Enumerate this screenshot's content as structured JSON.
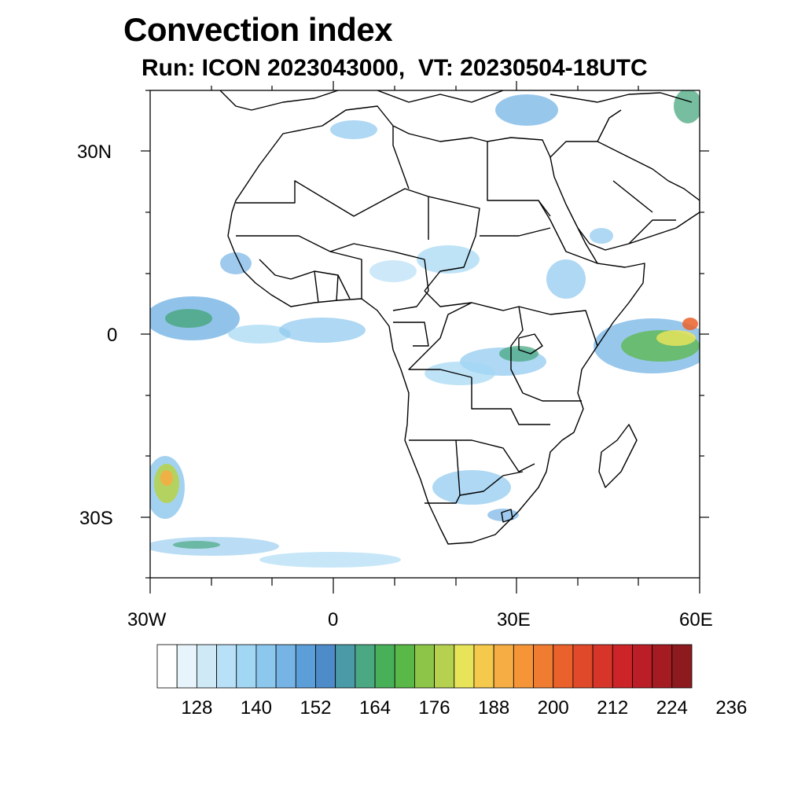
{
  "title": "Convection index",
  "subtitle": "Run: ICON 2023043000,  VT: 20230504-18UTC",
  "axes": {
    "lat_labels": [
      "30N",
      "0",
      "30S"
    ],
    "lon_labels": [
      "30W",
      "0",
      "30E",
      "60E"
    ]
  },
  "colorbar": {
    "colors": [
      "#ffffff",
      "#e8f4fb",
      "#cfe9f7",
      "#b8e0f6",
      "#a2d7f4",
      "#8cc7ee",
      "#76b4e5",
      "#5c9ed8",
      "#4d8cc8",
      "#4a9aa8",
      "#4aa882",
      "#49b05a",
      "#59b848",
      "#8cc548",
      "#b6d14f",
      "#e8e45a",
      "#f4c94c",
      "#f5ad44",
      "#f59538",
      "#f07c32",
      "#ea612c",
      "#e04a2a",
      "#d8352a",
      "#cc2428",
      "#bb1e26",
      "#a51b22",
      "#8c1a1e"
    ],
    "labels": [
      "128",
      "140",
      "152",
      "164",
      "176",
      "188",
      "200",
      "212",
      "224",
      "236"
    ]
  },
  "icons": {
    "coastline": "country-border-outline"
  }
}
